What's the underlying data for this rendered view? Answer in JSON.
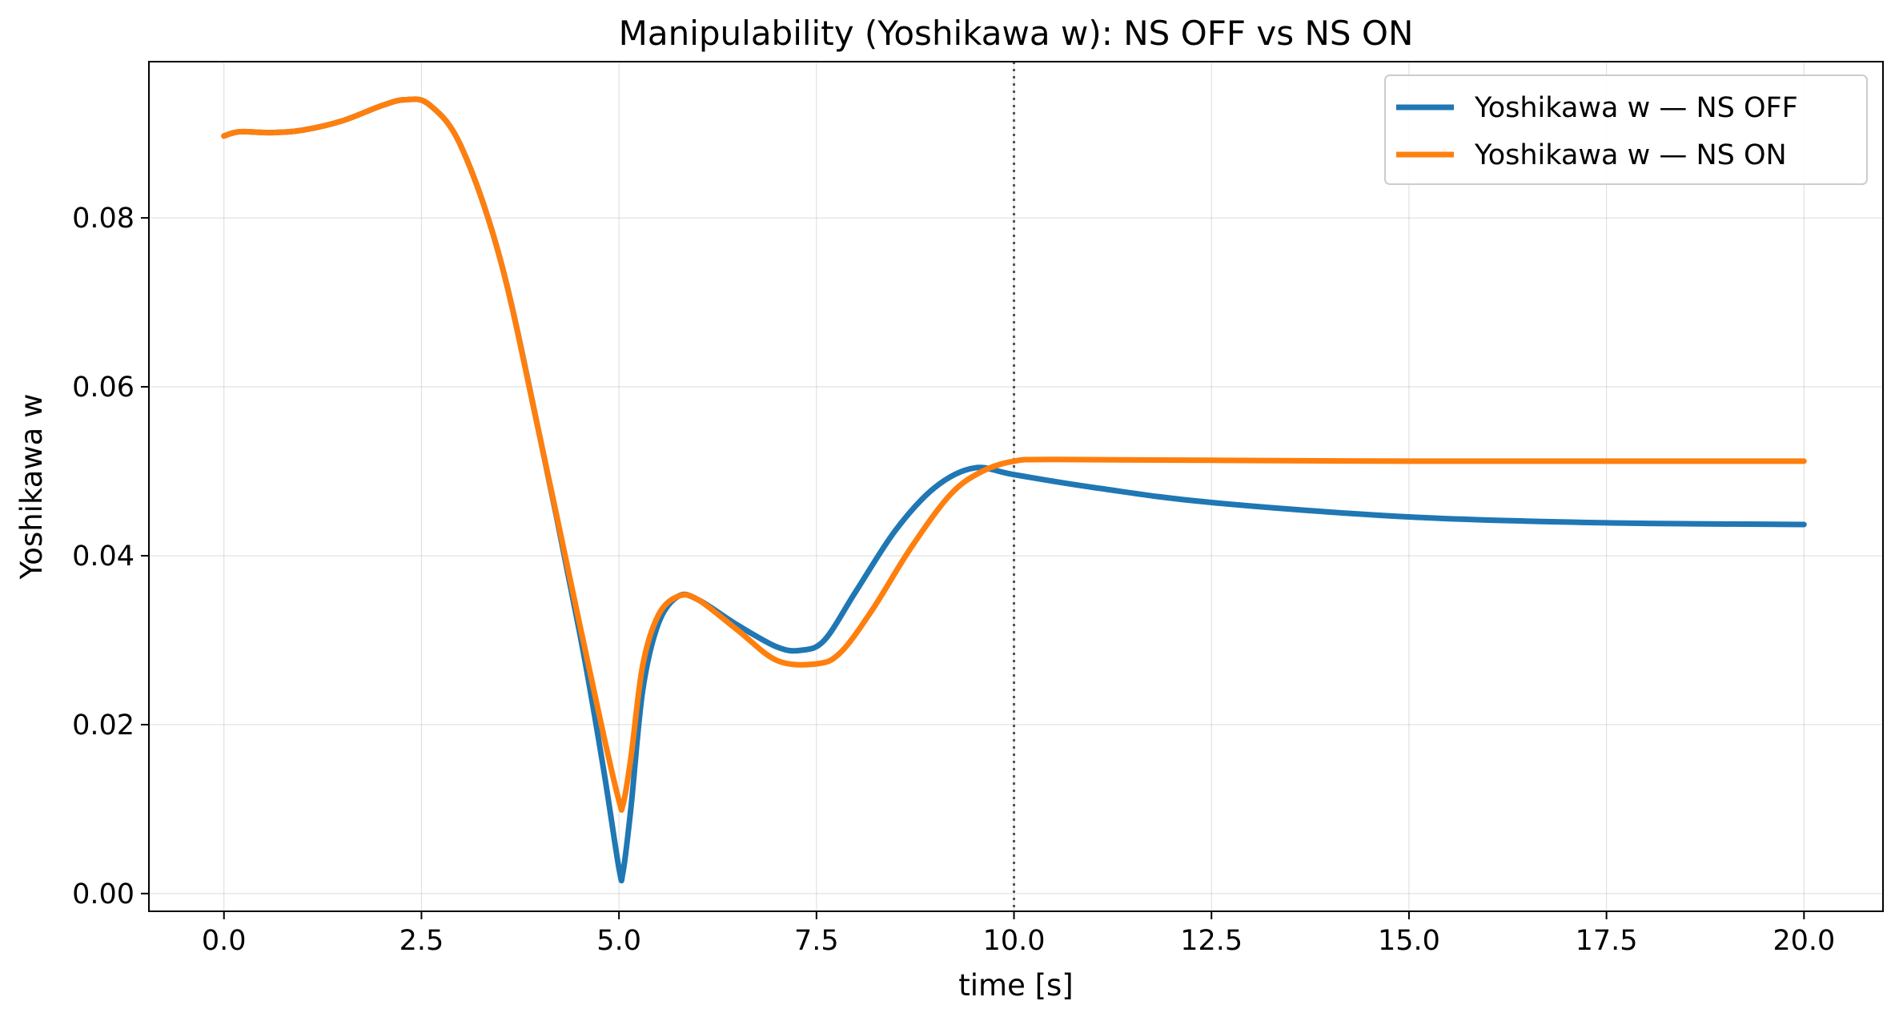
{
  "chart_data": {
    "type": "line",
    "title": "Manipulability (Yoshikawa w): NS OFF vs NS ON",
    "xlabel": "time [s]",
    "ylabel": "Yoshikawa w",
    "xlim": [
      -0.95,
      21.0
    ],
    "ylim": [
      -0.0021,
      0.0985
    ],
    "x_ticks": [
      0.0,
      2.5,
      5.0,
      7.5,
      10.0,
      12.5,
      15.0,
      17.5,
      20.0
    ],
    "x_tick_labels": [
      "0.0",
      "2.5",
      "5.0",
      "7.5",
      "10.0",
      "12.5",
      "15.0",
      "17.5",
      "20.0"
    ],
    "y_ticks": [
      0.0,
      0.02,
      0.04,
      0.06,
      0.08
    ],
    "y_tick_labels": [
      "0.00",
      "0.02",
      "0.04",
      "0.06",
      "0.08"
    ],
    "grid": true,
    "legend_position": "top-right",
    "vline": {
      "x": 10.0,
      "style": "dotted",
      "color": "#555555"
    },
    "series": [
      {
        "name": "Yoshikawa w — NS OFF",
        "color": "#1f77b4",
        "points": [
          [
            0.0,
            0.0897
          ],
          [
            0.2,
            0.0902
          ],
          [
            0.6,
            0.0901
          ],
          [
            1.0,
            0.0904
          ],
          [
            1.5,
            0.0915
          ],
          [
            2.0,
            0.0933
          ],
          [
            2.3,
            0.094
          ],
          [
            2.6,
            0.0934
          ],
          [
            3.0,
            0.0885
          ],
          [
            3.5,
            0.075
          ],
          [
            4.0,
            0.054
          ],
          [
            4.5,
            0.031
          ],
          [
            4.8,
            0.015
          ],
          [
            5.0,
            0.003
          ],
          [
            5.05,
            0.0025
          ],
          [
            5.15,
            0.01
          ],
          [
            5.3,
            0.024
          ],
          [
            5.5,
            0.032
          ],
          [
            5.75,
            0.0352
          ],
          [
            6.0,
            0.0348
          ],
          [
            6.5,
            0.0318
          ],
          [
            7.0,
            0.0292
          ],
          [
            7.3,
            0.0288
          ],
          [
            7.6,
            0.03
          ],
          [
            8.0,
            0.0358
          ],
          [
            8.5,
            0.043
          ],
          [
            9.0,
            0.0481
          ],
          [
            9.5,
            0.0504
          ],
          [
            10.0,
            0.0496
          ],
          [
            11.0,
            0.0481
          ],
          [
            12.5,
            0.0463
          ],
          [
            15.0,
            0.0446
          ],
          [
            17.5,
            0.0439
          ],
          [
            20.0,
            0.0437
          ]
        ]
      },
      {
        "name": "Yoshikawa w — NS ON",
        "color": "#ff7f0e",
        "points": [
          [
            0.0,
            0.0897
          ],
          [
            0.2,
            0.0902
          ],
          [
            0.6,
            0.0901
          ],
          [
            1.0,
            0.0904
          ],
          [
            1.5,
            0.0915
          ],
          [
            2.0,
            0.0933
          ],
          [
            2.3,
            0.094
          ],
          [
            2.6,
            0.0934
          ],
          [
            3.0,
            0.0885
          ],
          [
            3.5,
            0.075
          ],
          [
            4.0,
            0.054
          ],
          [
            4.5,
            0.032
          ],
          [
            4.8,
            0.019
          ],
          [
            5.0,
            0.011
          ],
          [
            5.05,
            0.0105
          ],
          [
            5.15,
            0.016
          ],
          [
            5.3,
            0.027
          ],
          [
            5.5,
            0.033
          ],
          [
            5.75,
            0.0352
          ],
          [
            6.0,
            0.0348
          ],
          [
            6.5,
            0.0312
          ],
          [
            7.0,
            0.0276
          ],
          [
            7.5,
            0.0272
          ],
          [
            7.8,
            0.0285
          ],
          [
            8.2,
            0.0335
          ],
          [
            8.7,
            0.041
          ],
          [
            9.2,
            0.0473
          ],
          [
            9.6,
            0.05
          ],
          [
            10.0,
            0.0512
          ],
          [
            10.5,
            0.0514
          ],
          [
            12.5,
            0.0513
          ],
          [
            15.0,
            0.0512
          ],
          [
            17.5,
            0.0512
          ],
          [
            20.0,
            0.0512
          ]
        ]
      }
    ]
  }
}
